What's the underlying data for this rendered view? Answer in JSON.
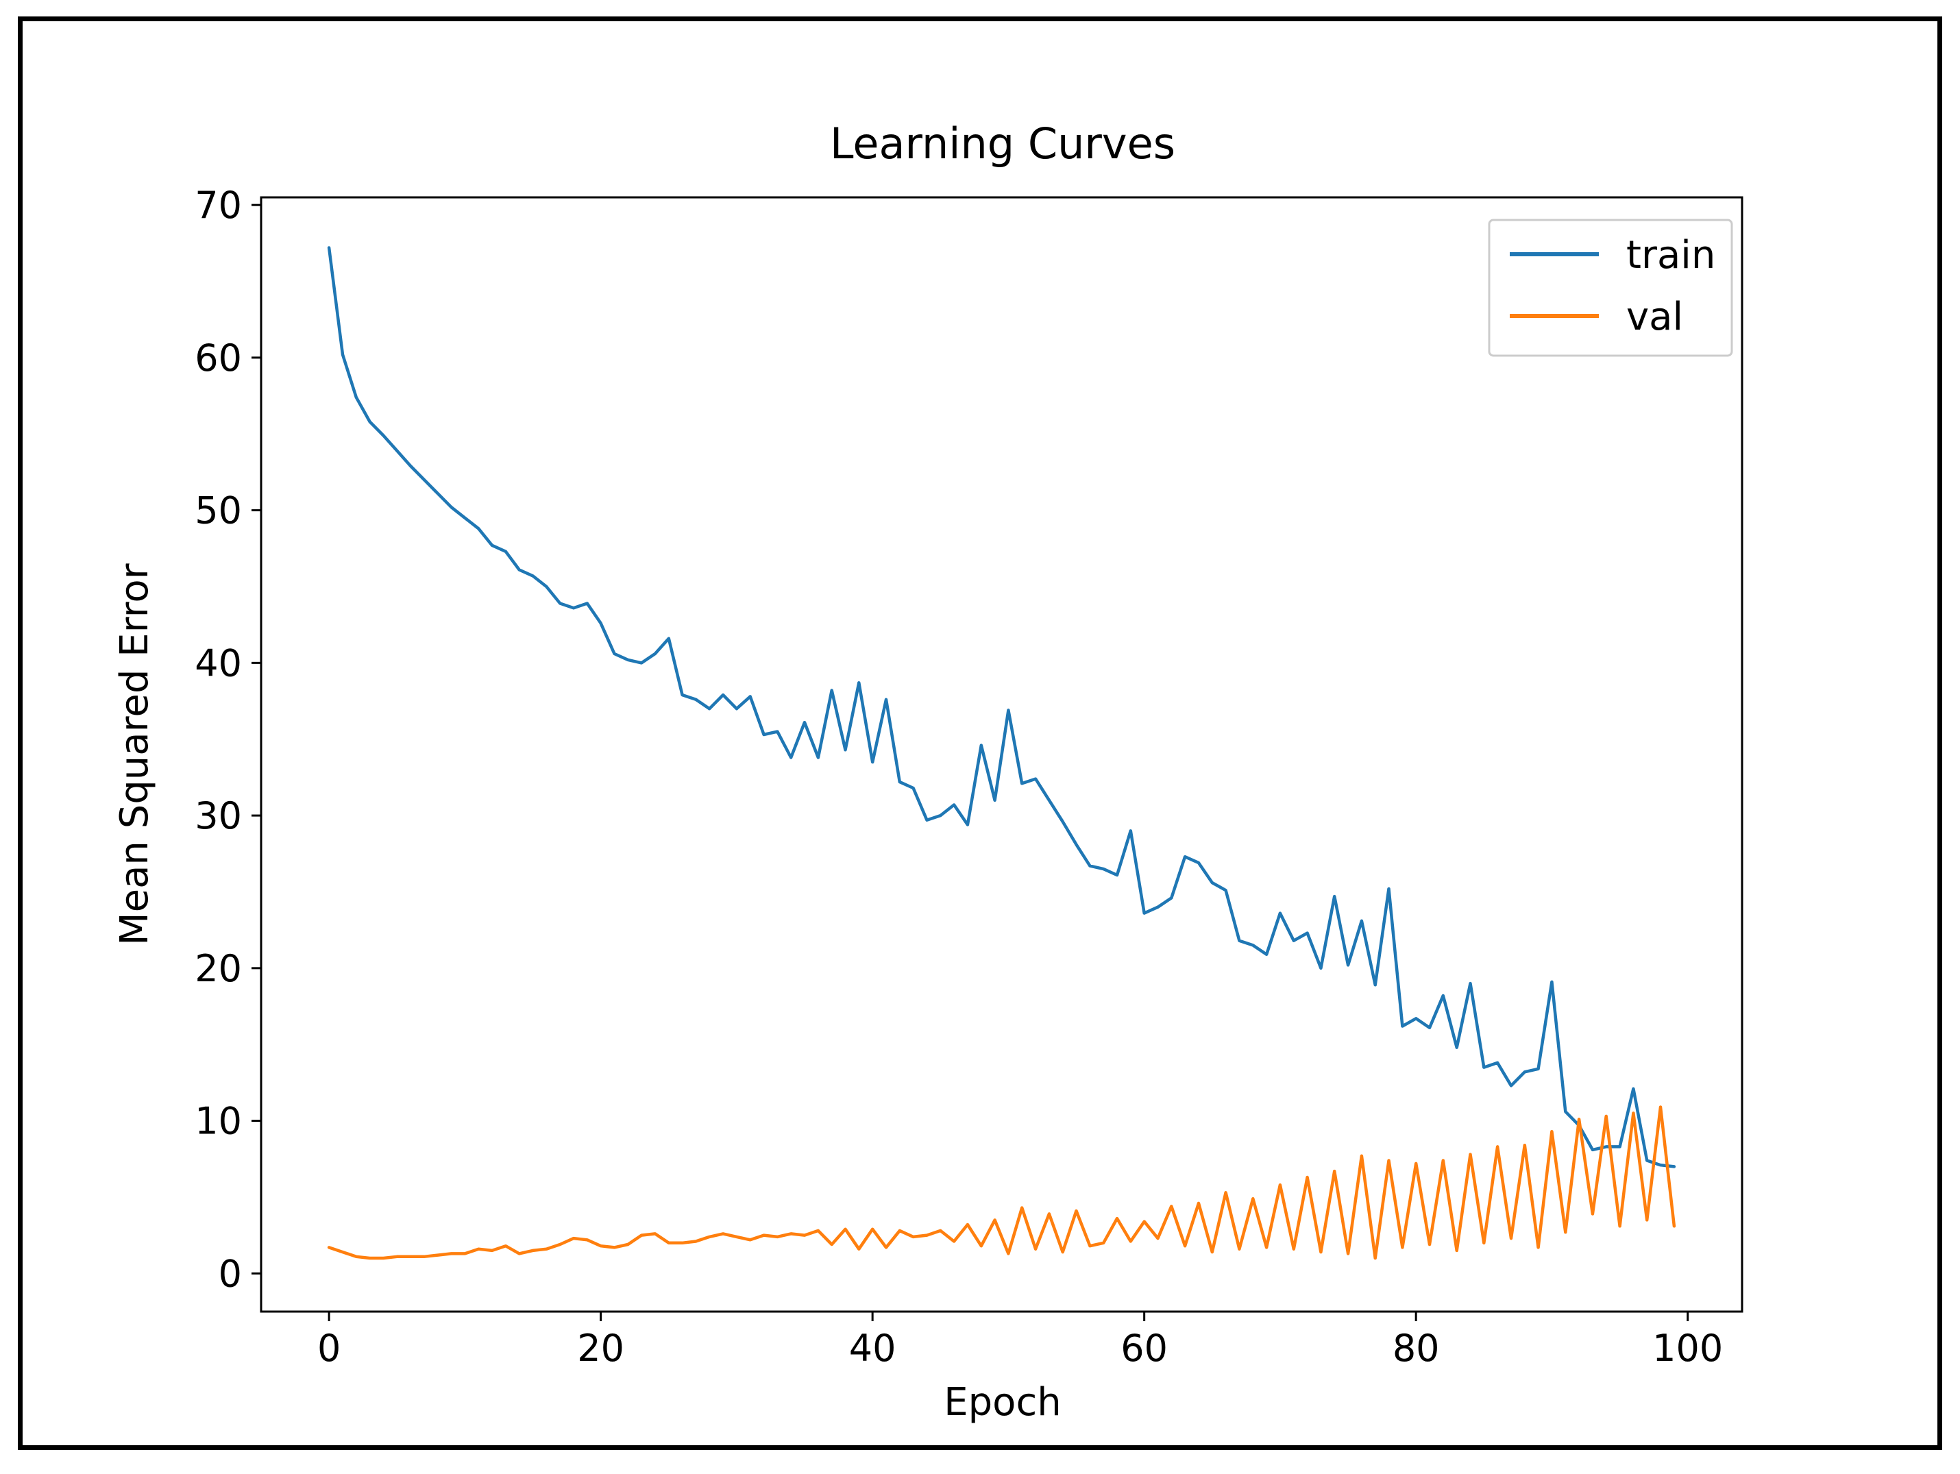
{
  "chart_data": {
    "type": "line",
    "title": "Learning Curves",
    "xlabel": "Epoch",
    "ylabel": "Mean Squared Error",
    "xlim": [
      -5,
      104
    ],
    "ylim": [
      -2.5,
      70.5
    ],
    "xticks": [
      0,
      20,
      40,
      60,
      80,
      100
    ],
    "yticks": [
      0,
      10,
      20,
      30,
      40,
      50,
      60,
      70
    ],
    "grid": false,
    "legend_position": "top-right",
    "x": [
      0,
      1,
      2,
      3,
      4,
      5,
      6,
      7,
      8,
      9,
      10,
      11,
      12,
      13,
      14,
      15,
      16,
      17,
      18,
      19,
      20,
      21,
      22,
      23,
      24,
      25,
      26,
      27,
      28,
      29,
      30,
      31,
      32,
      33,
      34,
      35,
      36,
      37,
      38,
      39,
      40,
      41,
      42,
      43,
      44,
      45,
      46,
      47,
      48,
      49,
      50,
      51,
      52,
      53,
      54,
      55,
      56,
      57,
      58,
      59,
      60,
      61,
      62,
      63,
      64,
      65,
      66,
      67,
      68,
      69,
      70,
      71,
      72,
      73,
      74,
      75,
      76,
      77,
      78,
      79,
      80,
      81,
      82,
      83,
      84,
      85,
      86,
      87,
      88,
      89,
      90,
      91,
      92,
      93,
      94,
      95,
      96,
      97,
      98,
      99
    ],
    "series": [
      {
        "name": "train",
        "color": "#1f77b4",
        "values": [
          67.2,
          60.2,
          57.4,
          55.8,
          54.9,
          53.9,
          52.9,
          52.0,
          51.1,
          50.2,
          49.5,
          48.8,
          47.7,
          47.3,
          46.1,
          45.7,
          45.0,
          43.9,
          43.6,
          43.9,
          42.6,
          40.6,
          40.2,
          40.0,
          40.6,
          41.6,
          37.9,
          37.6,
          37.0,
          37.9,
          37.0,
          37.8,
          35.3,
          35.5,
          33.8,
          36.1,
          33.8,
          38.2,
          34.3,
          38.7,
          33.5,
          37.6,
          32.2,
          31.8,
          29.7,
          30.0,
          30.7,
          29.4,
          34.6,
          31.0,
          36.9,
          32.1,
          32.4,
          31.0,
          29.6,
          28.1,
          26.7,
          26.5,
          26.1,
          29.0,
          23.6,
          24.0,
          24.6,
          27.3,
          26.9,
          25.6,
          25.1,
          21.8,
          21.5,
          20.9,
          23.6,
          21.8,
          22.3,
          20.0,
          24.7,
          20.2,
          23.1,
          18.9,
          25.2,
          16.2,
          16.7,
          16.1,
          18.2,
          14.8,
          19.0,
          13.5,
          13.8,
          12.3,
          13.2,
          13.4,
          19.1,
          10.6,
          9.7,
          8.1,
          8.3,
          8.3,
          12.1,
          7.4,
          7.1,
          7.0
        ]
      },
      {
        "name": "val",
        "color": "#ff7f0e",
        "values": [
          1.7,
          1.4,
          1.1,
          1.0,
          1.0,
          1.1,
          1.1,
          1.1,
          1.2,
          1.3,
          1.3,
          1.6,
          1.5,
          1.8,
          1.3,
          1.5,
          1.6,
          1.9,
          2.3,
          2.2,
          1.8,
          1.7,
          1.9,
          2.5,
          2.6,
          2.0,
          2.0,
          2.1,
          2.4,
          2.6,
          2.4,
          2.2,
          2.5,
          2.4,
          2.6,
          2.5,
          2.8,
          1.9,
          2.9,
          1.6,
          2.9,
          1.7,
          2.8,
          2.4,
          2.5,
          2.8,
          2.1,
          3.2,
          1.8,
          3.5,
          1.3,
          4.3,
          1.6,
          3.9,
          1.4,
          4.1,
          1.8,
          2.0,
          3.6,
          2.1,
          3.4,
          2.3,
          4.4,
          1.8,
          4.6,
          1.4,
          5.3,
          1.6,
          4.9,
          1.7,
          5.8,
          1.6,
          6.3,
          1.4,
          6.7,
          1.3,
          7.7,
          1.0,
          7.4,
          1.7,
          7.2,
          1.9,
          7.4,
          1.5,
          7.8,
          2.0,
          8.3,
          2.3,
          8.4,
          1.7,
          9.3,
          2.7,
          10.1,
          3.9,
          10.3,
          3.1,
          10.5,
          3.5,
          10.9,
          3.1
        ]
      }
    ]
  }
}
